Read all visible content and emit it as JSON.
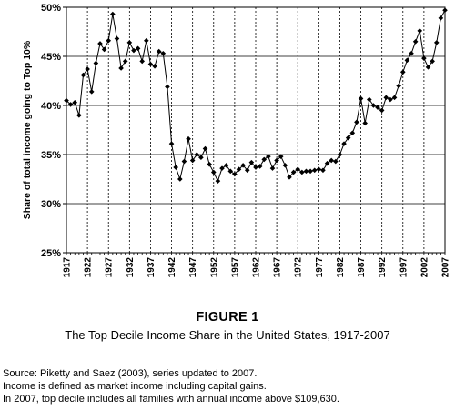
{
  "figure": {
    "title": "FIGURE 1",
    "subtitle": "The Top Decile Income Share in the United States, 1917-2007"
  },
  "notes": [
    "Source: Piketty and Saez (2003), series updated to 2007.",
    "Income is defined as market income including capital gains.",
    "In 2007, top decile includes all families with annual income above $109,630."
  ],
  "chart_data": {
    "type": "line",
    "title": "",
    "xlabel": "",
    "ylabel": "Share of total income going to Top 10%",
    "ylim": [
      25,
      50
    ],
    "xlim": [
      1917,
      2007
    ],
    "y_ticks": [
      25,
      30,
      35,
      40,
      45,
      50
    ],
    "y_tick_labels": [
      "25%",
      "30%",
      "35%",
      "40%",
      "45%",
      "50%"
    ],
    "x_ticks": [
      1917,
      1922,
      1927,
      1932,
      1937,
      1942,
      1947,
      1952,
      1957,
      1962,
      1967,
      1972,
      1977,
      1982,
      1987,
      1992,
      1997,
      2002,
      2007
    ],
    "x_tick_labels": [
      "1917",
      "1922",
      "1927",
      "1932",
      "1937",
      "1942",
      "1947",
      "1952",
      "1957",
      "1962",
      "1967",
      "1972",
      "1977",
      "1982",
      "1987",
      "1992",
      "1997",
      "2002",
      "2007"
    ],
    "grid": {
      "horizontal": "solid",
      "vertical": "dotted"
    },
    "legend": "none",
    "series": [
      {
        "name": "",
        "color": "#000000",
        "x": [
          1917,
          1918,
          1919,
          1920,
          1921,
          1922,
          1923,
          1924,
          1925,
          1926,
          1927,
          1928,
          1929,
          1930,
          1931,
          1932,
          1933,
          1934,
          1935,
          1936,
          1937,
          1938,
          1939,
          1940,
          1941,
          1942,
          1943,
          1944,
          1945,
          1946,
          1947,
          1948,
          1949,
          1950,
          1951,
          1952,
          1953,
          1954,
          1955,
          1956,
          1957,
          1958,
          1959,
          1960,
          1961,
          1962,
          1963,
          1964,
          1965,
          1966,
          1967,
          1968,
          1969,
          1970,
          1971,
          1972,
          1973,
          1974,
          1975,
          1976,
          1977,
          1978,
          1979,
          1980,
          1981,
          1982,
          1983,
          1984,
          1985,
          1986,
          1987,
          1988,
          1989,
          1990,
          1991,
          1992,
          1993,
          1994,
          1995,
          1996,
          1997,
          1998,
          1999,
          2000,
          2001,
          2002,
          2003,
          2004,
          2005,
          2006,
          2007
        ],
        "y": [
          40.5,
          40.1,
          40.3,
          39.0,
          43.1,
          43.7,
          41.4,
          44.3,
          46.3,
          45.7,
          46.6,
          49.3,
          46.8,
          43.8,
          44.5,
          46.4,
          45.6,
          45.8,
          44.5,
          46.6,
          44.2,
          44.0,
          45.5,
          45.3,
          41.9,
          36.1,
          33.7,
          32.5,
          34.3,
          36.6,
          34.4,
          35.0,
          34.7,
          35.6,
          34.0,
          33.2,
          32.3,
          33.6,
          33.9,
          33.3,
          33.0,
          33.5,
          33.9,
          33.4,
          34.2,
          33.7,
          33.8,
          34.5,
          34.8,
          33.6,
          34.4,
          34.8,
          33.9,
          32.7,
          33.2,
          33.5,
          33.2,
          33.3,
          33.3,
          33.4,
          33.5,
          33.4,
          34.1,
          34.4,
          34.3,
          35.0,
          36.1,
          36.7,
          37.2,
          38.3,
          40.7,
          38.2,
          40.6,
          40.0,
          39.8,
          39.5,
          40.8,
          40.6,
          40.8,
          42.0,
          43.4,
          44.6,
          45.3,
          46.5,
          47.6,
          44.8,
          43.9,
          44.5,
          46.4,
          48.9,
          49.7
        ]
      }
    ]
  }
}
